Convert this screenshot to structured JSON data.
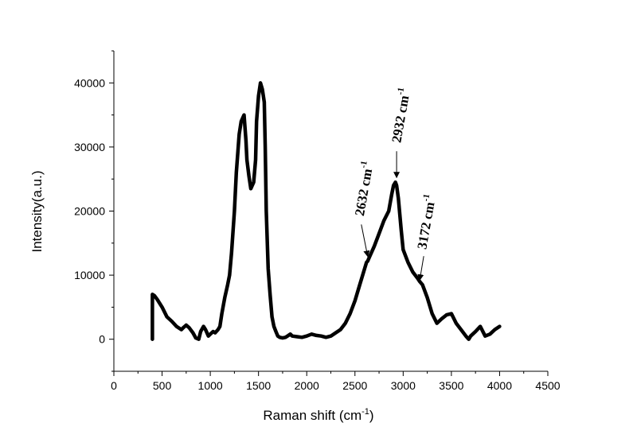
{
  "chart_data": {
    "type": "line",
    "xlabel": "Raman shift (cm",
    "xlabel_sup": "-1",
    "xlabel_end": ")",
    "ylabel": "Intensity(a.u.)",
    "xlim": [
      0,
      4500
    ],
    "ylim": [
      -5000,
      45000
    ],
    "xticks": [
      0,
      500,
      1000,
      1500,
      2000,
      2500,
      3000,
      3500,
      4000,
      4500
    ],
    "yticks": [
      0,
      10000,
      20000,
      30000,
      40000
    ],
    "grid": false,
    "series": [
      {
        "color": "#000000",
        "x": [
          400,
          400,
          420,
          450,
          500,
          550,
          600,
          650,
          700,
          720,
          750,
          780,
          820,
          850,
          880,
          900,
          930,
          950,
          980,
          1000,
          1030,
          1050,
          1080,
          1100,
          1120,
          1150,
          1180,
          1200,
          1220,
          1250,
          1270,
          1300,
          1320,
          1350,
          1370,
          1380,
          1400,
          1420,
          1450,
          1470,
          1480,
          1500,
          1520,
          1540,
          1560,
          1570,
          1580,
          1600,
          1620,
          1640,
          1660,
          1680,
          1700,
          1720,
          1750,
          1780,
          1800,
          1830,
          1850,
          1900,
          1950,
          2000,
          2050,
          2100,
          2150,
          2200,
          2250,
          2300,
          2350,
          2400,
          2450,
          2500,
          2550,
          2600,
          2620,
          2632,
          2650,
          2700,
          2750,
          2800,
          2850,
          2880,
          2900,
          2920,
          2932,
          2950,
          2980,
          3000,
          3050,
          3100,
          3150,
          3172,
          3200,
          3250,
          3300,
          3350,
          3400,
          3450,
          3500,
          3550,
          3600,
          3650,
          3680,
          3700,
          3750,
          3800,
          3850,
          3900,
          3950,
          4000
        ],
        "y": [
          0,
          7000,
          6800,
          6200,
          5000,
          3500,
          2800,
          2000,
          1500,
          1800,
          2200,
          1800,
          1000,
          200,
          0,
          1200,
          2000,
          1500,
          500,
          800,
          1200,
          1000,
          1500,
          2000,
          4000,
          6500,
          8500,
          10000,
          13500,
          20000,
          26000,
          32000,
          34000,
          35000,
          31000,
          28000,
          25500,
          23500,
          24500,
          28000,
          34000,
          38000,
          40000,
          39000,
          37000,
          30000,
          20000,
          11000,
          7000,
          3500,
          2000,
          1200,
          500,
          300,
          200,
          300,
          500,
          800,
          500,
          400,
          300,
          500,
          800,
          600,
          500,
          300,
          500,
          1000,
          1500,
          2500,
          4000,
          6000,
          8500,
          11000,
          12000,
          12200,
          12800,
          14500,
          16500,
          18500,
          20000,
          22500,
          24000,
          24500,
          24000,
          22000,
          17000,
          14000,
          12000,
          10500,
          9500,
          9000,
          8500,
          6500,
          4000,
          2500,
          3200,
          3800,
          4000,
          2500,
          1500,
          500,
          0,
          500,
          1200,
          2000,
          500,
          800,
          1500,
          2000
        ]
      }
    ],
    "annotations": [
      {
        "text": "2632 cm",
        "sup": "-1",
        "x": 2632,
        "y": 12200
      },
      {
        "text": "2932 cm",
        "sup": "-1",
        "x": 2932,
        "y": 24500
      },
      {
        "text": "3172 cm",
        "sup": "-1",
        "x": 3172,
        "y": 8500
      }
    ]
  }
}
